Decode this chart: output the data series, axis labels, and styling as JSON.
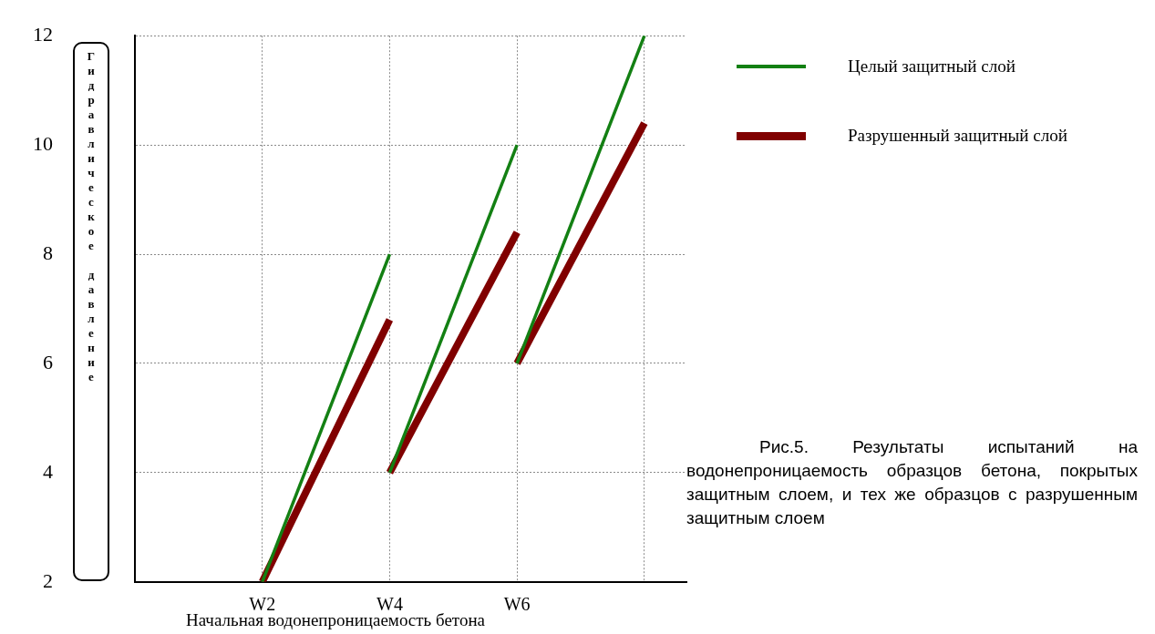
{
  "chart_data": {
    "type": "line",
    "xlabel": "Начальная водонепроницаемость бетона",
    "ylabel": "Гидравлическое давление",
    "categories": [
      null,
      "W2",
      "W4",
      "W6",
      null
    ],
    "series": [
      {
        "name": "Целый защитный слой",
        "color": "#138013",
        "values": [
          null,
          2,
          8,
          null,
          null
        ]
      },
      {
        "color": "#138013",
        "values": [
          null,
          null,
          4,
          10,
          null
        ]
      },
      {
        "color": "#138013",
        "values": [
          null,
          null,
          null,
          6,
          12
        ]
      },
      {
        "name": "Разрушенный защитный слой",
        "color": "#800000",
        "values": [
          null,
          2,
          6.8,
          null,
          null
        ]
      },
      {
        "color": "#800000",
        "values": [
          null,
          null,
          4,
          8.4,
          null
        ]
      },
      {
        "color": "#800000",
        "values": [
          null,
          null,
          null,
          6,
          10.4
        ]
      }
    ],
    "ylim": [
      2,
      12
    ],
    "yticks": [
      2,
      4,
      6,
      8,
      10,
      12
    ],
    "grid": true,
    "legend": "top right",
    "marker": "none",
    "line_style": "solid",
    "annotations": [
      "Рис.5. Результаты испытаний на водонепроницаемость образцов бетона, покрытых защитным слоем, и тех же образцов с разрушенным защитным слоем"
    ]
  }
}
